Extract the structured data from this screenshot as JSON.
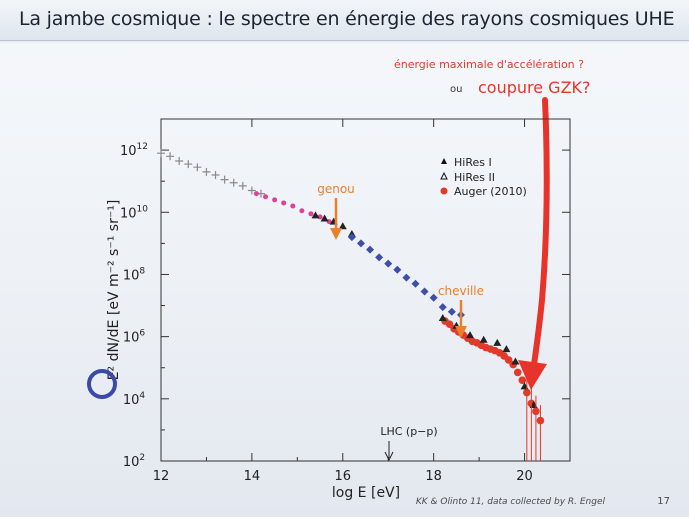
{
  "slide": {
    "title": "La jambe cosmique : le spectre en énergie des rayons cosmiques UHE",
    "footer_credit": "KK & Olinto 11, data collected by R. Engel",
    "page_number": "17"
  },
  "annotations": {
    "energy_max": "énergie maximale d'accélération ?",
    "ou": "ou",
    "gzk": "coupure GZK?",
    "genou": "genou",
    "cheville": "cheville",
    "lhc": "LHC (p−p)"
  },
  "colors": {
    "orange": "#e8802c",
    "red": "#e03a2a",
    "arrow_red": "#e8332a",
    "pink": "#e0409a",
    "blue": "#3d4fa6",
    "gray": "#8a8a8a",
    "circle": "#3b49a8"
  },
  "chart_data": {
    "type": "scatter",
    "xlabel": "log E [eV]",
    "ylabel": "E² dN/dE [eV m⁻² s⁻¹ sr⁻¹]",
    "xlim": [
      12,
      21
    ],
    "ylim_log10": [
      2,
      13
    ],
    "x_ticks": [
      12,
      14,
      16,
      18,
      20
    ],
    "y_ticks": [
      {
        "base": "10",
        "exp": "2"
      },
      {
        "base": "10",
        "exp": "4"
      },
      {
        "base": "10",
        "exp": "6"
      },
      {
        "base": "10",
        "exp": "8"
      },
      {
        "base": "10",
        "exp": "10"
      },
      {
        "base": "10",
        "exp": "12"
      }
    ],
    "legend_position": "top-right",
    "legend": [
      {
        "marker": "filled-triangle",
        "label": "HiRes I"
      },
      {
        "marker": "open-triangle",
        "label": "HiRes II"
      },
      {
        "marker": "red-circle",
        "label": "Auger (2010)"
      }
    ],
    "series": [
      {
        "color": "#8a8a8a",
        "marker": "cross",
        "points": [
          [
            12.0,
            11.9
          ],
          [
            12.2,
            11.8
          ],
          [
            12.4,
            11.65
          ],
          [
            12.6,
            11.55
          ],
          [
            12.8,
            11.45
          ],
          [
            13.0,
            11.3
          ],
          [
            13.2,
            11.2
          ],
          [
            13.4,
            11.05
          ],
          [
            13.6,
            10.95
          ],
          [
            13.8,
            10.85
          ],
          [
            14.0,
            10.7
          ],
          [
            14.2,
            10.6
          ]
        ]
      },
      {
        "color": "#e0409a",
        "marker": "dot",
        "points": [
          [
            14.1,
            10.6
          ],
          [
            14.3,
            10.5
          ],
          [
            14.5,
            10.4
          ],
          [
            14.7,
            10.3
          ],
          [
            14.9,
            10.2
          ],
          [
            15.1,
            10.05
          ],
          [
            15.3,
            9.95
          ],
          [
            15.5,
            9.85
          ],
          [
            15.7,
            9.7
          ]
        ]
      },
      {
        "color": "#222222",
        "marker": "filled-triangle",
        "points": [
          [
            15.4,
            9.9
          ],
          [
            15.6,
            9.8
          ],
          [
            15.8,
            9.7
          ],
          [
            16.0,
            9.55
          ],
          [
            16.2,
            9.3
          ]
        ]
      },
      {
        "color": "#3d4fa6",
        "marker": "diamond",
        "points": [
          [
            16.2,
            9.2
          ],
          [
            16.4,
            9.0
          ],
          [
            16.6,
            8.8
          ],
          [
            16.8,
            8.55
          ],
          [
            17.0,
            8.35
          ],
          [
            17.2,
            8.15
          ],
          [
            17.4,
            7.9
          ],
          [
            17.6,
            7.7
          ],
          [
            17.8,
            7.45
          ],
          [
            18.0,
            7.25
          ],
          [
            18.2,
            6.95
          ],
          [
            18.4,
            6.8
          ],
          [
            18.6,
            6.7
          ]
        ]
      },
      {
        "color": "#e03a2a",
        "marker": "circle",
        "points": [
          [
            18.25,
            6.5
          ],
          [
            18.35,
            6.4
          ],
          [
            18.45,
            6.25
          ],
          [
            18.55,
            6.15
          ],
          [
            18.65,
            6.05
          ],
          [
            18.75,
            5.95
          ],
          [
            18.85,
            5.85
          ],
          [
            18.95,
            5.8
          ],
          [
            19.05,
            5.72
          ],
          [
            19.15,
            5.65
          ],
          [
            19.25,
            5.6
          ],
          [
            19.35,
            5.55
          ],
          [
            19.45,
            5.48
          ],
          [
            19.55,
            5.38
          ],
          [
            19.65,
            5.25
          ],
          [
            19.75,
            5.1
          ],
          [
            19.85,
            4.85
          ],
          [
            19.95,
            4.6
          ],
          [
            20.05,
            4.2
          ],
          [
            20.15,
            3.85
          ],
          [
            20.25,
            3.6
          ],
          [
            20.35,
            3.3
          ]
        ]
      },
      {
        "color": "#222222",
        "marker": "filled-triangle",
        "points": [
          [
            18.2,
            6.6
          ],
          [
            18.5,
            6.35
          ],
          [
            18.8,
            6.05
          ],
          [
            19.1,
            5.9
          ],
          [
            19.4,
            5.8
          ],
          [
            19.6,
            5.6
          ],
          [
            19.8,
            5.2
          ],
          [
            20.0,
            4.4
          ],
          [
            20.2,
            3.8
          ]
        ]
      }
    ]
  }
}
